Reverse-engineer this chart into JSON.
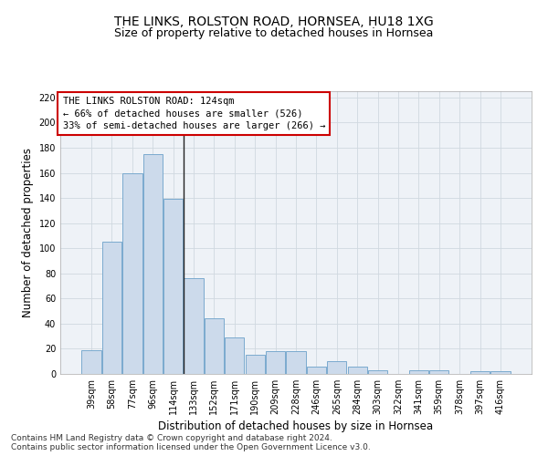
{
  "title": "THE LINKS, ROLSTON ROAD, HORNSEA, HU18 1XG",
  "subtitle": "Size of property relative to detached houses in Hornsea",
  "xlabel": "Distribution of detached houses by size in Hornsea",
  "ylabel": "Number of detached properties",
  "categories": [
    "39sqm",
    "58sqm",
    "77sqm",
    "96sqm",
    "114sqm",
    "133sqm",
    "152sqm",
    "171sqm",
    "190sqm",
    "209sqm",
    "228sqm",
    "246sqm",
    "265sqm",
    "284sqm",
    "303sqm",
    "322sqm",
    "341sqm",
    "359sqm",
    "378sqm",
    "397sqm",
    "416sqm"
  ],
  "values": [
    19,
    105,
    160,
    175,
    139,
    76,
    44,
    29,
    15,
    18,
    18,
    6,
    10,
    6,
    3,
    0,
    3,
    3,
    0,
    2,
    2
  ],
  "bar_color_light": "#ccdaeb",
  "bar_color_dark": "#7aaace",
  "highlight_index": 4,
  "highlight_line_color": "#222222",
  "annotation_text": "THE LINKS ROLSTON ROAD: 124sqm\n← 66% of detached houses are smaller (526)\n33% of semi-detached houses are larger (266) →",
  "annotation_box_color": "#cc0000",
  "ylim": [
    0,
    225
  ],
  "yticks": [
    0,
    20,
    40,
    60,
    80,
    100,
    120,
    140,
    160,
    180,
    200,
    220
  ],
  "grid_color": "#d0d8e0",
  "background_color": "#eef2f7",
  "footer_line1": "Contains HM Land Registry data © Crown copyright and database right 2024.",
  "footer_line2": "Contains public sector information licensed under the Open Government Licence v3.0.",
  "title_fontsize": 10,
  "subtitle_fontsize": 9,
  "xlabel_fontsize": 8.5,
  "ylabel_fontsize": 8.5,
  "tick_fontsize": 7,
  "footer_fontsize": 6.5,
  "annotation_fontsize": 7.5
}
